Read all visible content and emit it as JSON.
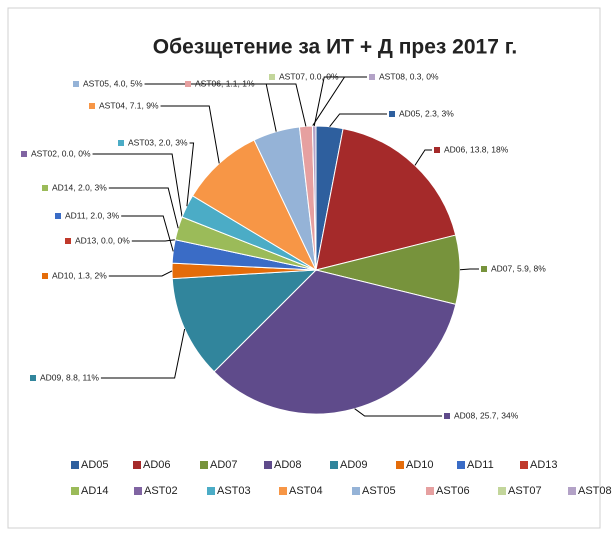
{
  "chart_data": {
    "type": "pie",
    "title": "Обезщетение за ИТ + Д през 2017 г.",
    "categories": [
      "AD05",
      "AD06",
      "AD07",
      "AD08",
      "AD09",
      "AD10",
      "AD11",
      "AD13",
      "AD14",
      "AST02",
      "AST03",
      "AST04",
      "AST05",
      "AST06",
      "AST07",
      "AST08"
    ],
    "values": [
      2.3,
      13.8,
      5.9,
      25.7,
      8.8,
      1.3,
      2.0,
      0.0,
      2.0,
      0.0,
      2.0,
      7.1,
      4.0,
      1.1,
      0.0,
      0.3
    ],
    "value_labels": [
      "AD05, 2.3, 3%",
      "AD06, 13.8, 18%",
      "AD07, 5.9, 8%",
      "AD08, 25.7, 34%",
      "AD09, 8.8, 11%",
      "AD10, 1.3, 2%",
      "AD11, 2.0, 3%",
      "AD13, 0.0, 0%",
      "AD14, 2.0, 3%",
      "AST02, 0.0, 0%",
      "AST03, 2.0, 3%",
      "AST04, 7.1, 9%",
      "AST05, 4.0, 5%",
      "AST06, 1.1, 1%",
      "AST07, 0.0, 0%",
      "AST08, 0.3, 0%"
    ],
    "colors": [
      "#2e5f9e",
      "#a52a2a",
      "#77933c",
      "#5f4b8b",
      "#31859c",
      "#e46c0a",
      "#3a6cc6",
      "#c0392b",
      "#9bbb59",
      "#8064a2",
      "#4bacc6",
      "#f79646",
      "#95b3d7",
      "#e6a0a0",
      "#c3d69b",
      "#b3a2c7"
    ],
    "legend": "bottom"
  }
}
